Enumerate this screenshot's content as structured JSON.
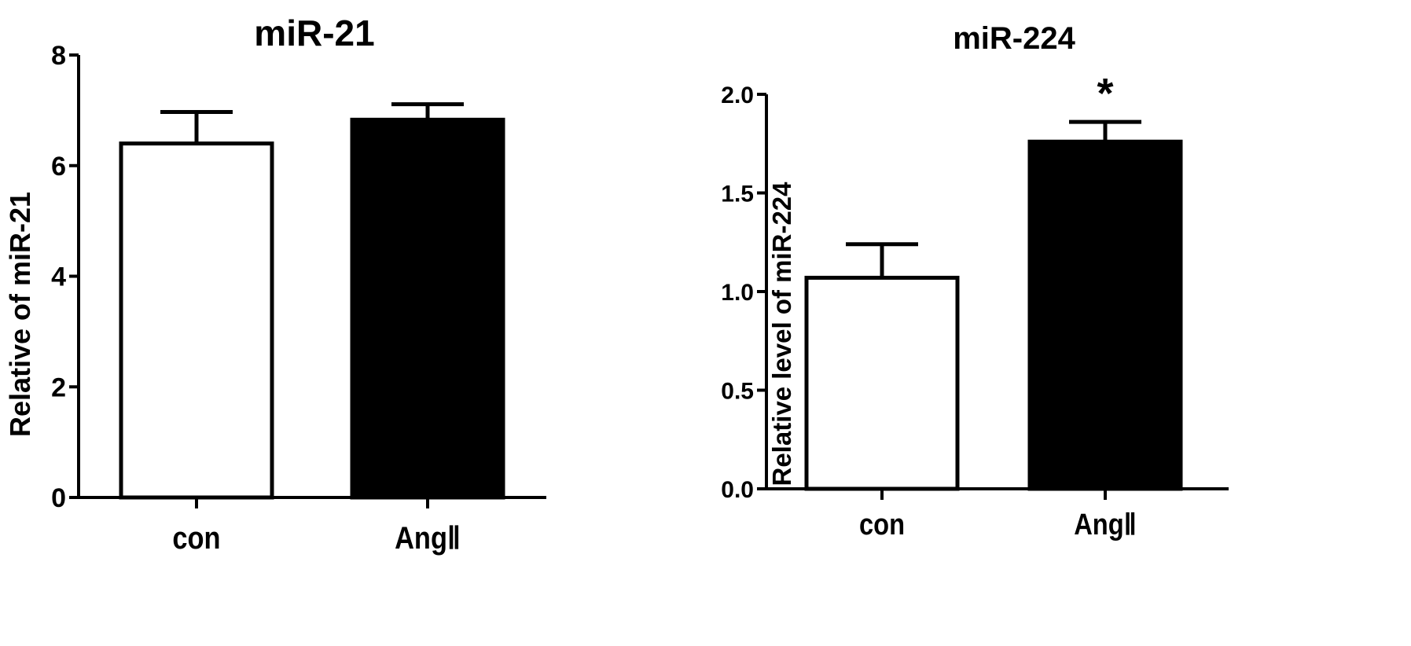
{
  "chart_data": [
    {
      "type": "bar",
      "title": "miR-21",
      "ylabel": "Relative of miR-21",
      "xlabel": "",
      "categories": [
        "con",
        "AngⅡ"
      ],
      "values": [
        6.4,
        6.83
      ],
      "errors": [
        0.57,
        0.28
      ],
      "bar_colors": [
        "#ffffff",
        "#000000"
      ],
      "ylim": [
        0,
        8
      ],
      "yticks": [
        0,
        2,
        4,
        6,
        8
      ],
      "ytick_labels": [
        "0",
        "2",
        "4",
        "6",
        "8"
      ],
      "annotations": [
        "",
        ""
      ],
      "grid": false
    },
    {
      "type": "bar",
      "title": "miR-224",
      "ylabel": "Relative level of miR-224",
      "xlabel": "",
      "categories": [
        "con",
        "AngⅡ"
      ],
      "values": [
        1.07,
        1.76
      ],
      "errors": [
        0.17,
        0.1
      ],
      "bar_colors": [
        "#ffffff",
        "#000000"
      ],
      "ylim": [
        0,
        2.0
      ],
      "yticks": [
        0,
        0.5,
        1.0,
        1.5,
        2.0
      ],
      "ytick_labels": [
        "0.0",
        "0.5",
        "1.0",
        "1.5",
        "2.0"
      ],
      "annotations": [
        "",
        "*"
      ],
      "grid": false
    }
  ]
}
